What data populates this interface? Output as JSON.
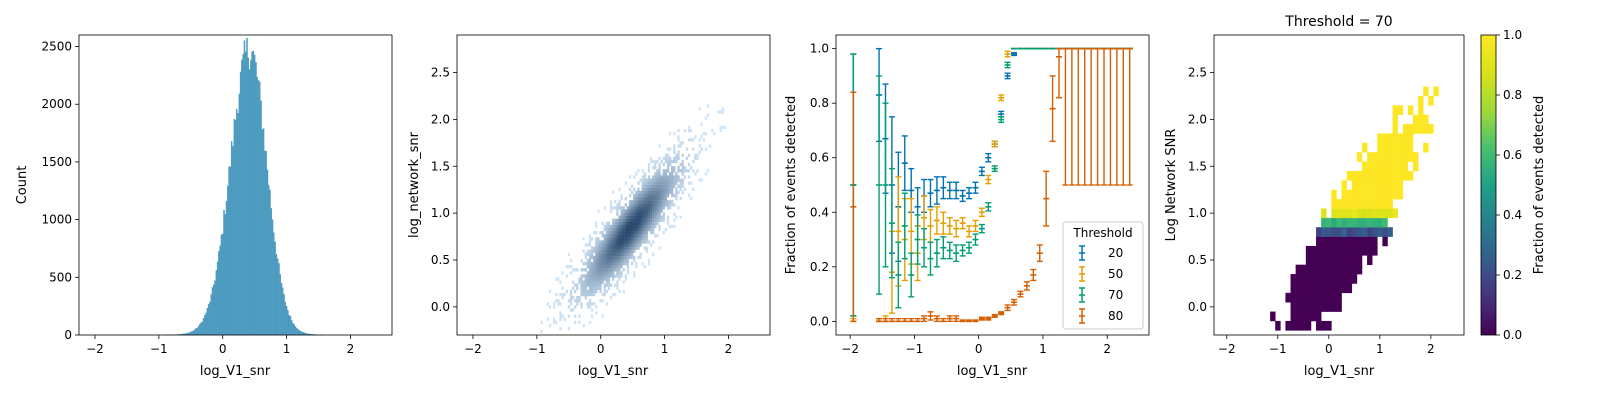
{
  "chart_data": [
    {
      "type": "bar",
      "subtype": "histogram",
      "title": "",
      "xlabel": "log_V1_snr",
      "ylabel": "Count",
      "xlim": [
        -2.25,
        2.65
      ],
      "ylim": [
        0,
        2600
      ],
      "xticks": [
        -2,
        -1,
        0,
        1,
        2
      ],
      "yticks": [
        0,
        500,
        1000,
        1500,
        2000,
        2500
      ],
      "bar_color": "#4a9ec4",
      "distribution": {
        "center": 0.42,
        "sd_left": 0.3,
        "sd_right": 0.27,
        "peak_count": 2450,
        "x_min": -2.05,
        "x_max": 2.45,
        "bin_width": 0.02
      }
    },
    {
      "type": "heatmap",
      "subtype": "2d-histogram",
      "title": "",
      "xlabel": "log_V1_snr",
      "ylabel": "log_network_snr",
      "xlim": [
        -2.25,
        2.65
      ],
      "ylim": [
        -0.3,
        2.9
      ],
      "xticks": [
        -2,
        -1,
        0,
        1,
        2
      ],
      "yticks": [
        0.0,
        0.5,
        1.0,
        1.5,
        2.0,
        2.5
      ],
      "color_low": "#d2e6f8",
      "color_high": "#2a4a6e",
      "density": {
        "center_x": 0.45,
        "center_y": 0.82,
        "slope": 0.78,
        "sd_x": 0.38,
        "sd_perp": 0.16
      }
    },
    {
      "type": "scatter",
      "subtype": "errorbar",
      "title": "",
      "xlabel": "log_V1_snr",
      "ylabel": "Fraction of events detected",
      "xlim": [
        -2.22,
        2.65
      ],
      "ylim": [
        -0.05,
        1.05
      ],
      "xticks": [
        -2,
        -1,
        0,
        1,
        2
      ],
      "yticks": [
        0.0,
        0.2,
        0.4,
        0.6,
        0.8,
        1.0
      ],
      "legend_title": "Threshold",
      "legend_position": "lower-right",
      "x": [
        -1.95,
        -1.55,
        -1.45,
        -1.35,
        -1.25,
        -1.15,
        -1.05,
        -0.95,
        -0.85,
        -0.75,
        -0.65,
        -0.55,
        -0.45,
        -0.35,
        -0.25,
        -0.15,
        -0.05,
        0.05,
        0.15,
        0.25,
        0.35,
        0.45,
        0.55,
        0.65,
        0.75,
        0.85,
        0.95,
        1.05,
        1.15,
        1.25,
        1.35,
        1.45,
        1.55,
        1.65,
        1.75,
        1.85,
        1.95,
        2.05,
        2.15,
        2.25,
        2.35
      ],
      "series": [
        {
          "name": "20",
          "color": "#0072b2",
          "y": [
            0.5,
            0.83,
            0.67,
            0.5,
            0.42,
            0.58,
            0.48,
            0.42,
            0.46,
            0.47,
            0.48,
            0.49,
            0.48,
            0.48,
            0.46,
            0.47,
            0.49,
            0.55,
            0.6,
            0.65,
            0.76,
            0.9,
            0.98,
            1.0,
            1.0,
            1.0,
            1.0,
            1.0,
            1.0,
            1.0,
            1.0,
            1.0,
            1.0,
            1.0,
            1.0,
            1.0,
            1.0,
            1.0,
            1.0,
            1.0,
            1.0
          ],
          "err": [
            0.48,
            0.17,
            0.2,
            0.25,
            0.2,
            0.1,
            0.08,
            0.07,
            0.06,
            0.05,
            0.05,
            0.04,
            0.03,
            0.03,
            0.02,
            0.02,
            0.02,
            0.015,
            0.015,
            0.01,
            0.01,
            0.01,
            0.005,
            0,
            0,
            0,
            0,
            0,
            0,
            0,
            0,
            0,
            0,
            0,
            0,
            0,
            0,
            0,
            0,
            0,
            0
          ]
        },
        {
          "name": "50",
          "color": "#e69f00",
          "y": [
            0.0,
            0.0,
            0.0,
            0.18,
            0.33,
            0.3,
            0.33,
            0.25,
            0.38,
            0.35,
            0.37,
            0.36,
            0.35,
            0.34,
            0.36,
            0.33,
            0.35,
            0.4,
            0.52,
            0.65,
            0.82,
            0.98,
            1.0,
            1.0,
            1.0,
            1.0,
            1.0,
            1.0,
            1.0,
            1.0,
            1.0,
            1.0,
            1.0,
            1.0,
            1.0,
            1.0,
            1.0,
            1.0,
            1.0,
            1.0,
            1.0
          ],
          "err": [
            0.01,
            0.01,
            0.02,
            0.15,
            0.2,
            0.15,
            0.12,
            0.1,
            0.08,
            0.06,
            0.05,
            0.04,
            0.03,
            0.03,
            0.02,
            0.02,
            0.02,
            0.015,
            0.015,
            0.01,
            0.01,
            0.01,
            0,
            0,
            0,
            0,
            0,
            0,
            0,
            0,
            0,
            0,
            0,
            0,
            0,
            0,
            0,
            0,
            0,
            0,
            0
          ]
        },
        {
          "name": "70",
          "color": "#009e73",
          "y": [
            0.5,
            0.5,
            0.5,
            0.36,
            0.17,
            0.35,
            0.17,
            0.3,
            0.27,
            0.23,
            0.25,
            0.27,
            0.26,
            0.25,
            0.26,
            0.27,
            0.3,
            0.34,
            0.42,
            0.56,
            0.74,
            0.94,
            1.0,
            1.0,
            1.0,
            1.0,
            1.0,
            1.0,
            1.0,
            1.0,
            1.0,
            1.0,
            1.0,
            1.0,
            1.0,
            1.0,
            1.0,
            1.0,
            1.0,
            1.0,
            1.0
          ],
          "err": [
            0.48,
            0.4,
            0.3,
            0.2,
            0.12,
            0.12,
            0.08,
            0.09,
            0.07,
            0.06,
            0.05,
            0.04,
            0.03,
            0.03,
            0.02,
            0.02,
            0.02,
            0.015,
            0.015,
            0.01,
            0.01,
            0.01,
            0,
            0,
            0,
            0,
            0,
            0,
            0,
            0,
            0,
            0,
            0,
            0,
            0,
            0,
            0,
            0,
            0,
            0,
            0
          ]
        },
        {
          "name": "80",
          "color": "#d55e00",
          "y": [
            0.42,
            0.0,
            0.0,
            0.0,
            0.0,
            0.0,
            0.0,
            0.0,
            0.01,
            0.02,
            0.01,
            0.0,
            0.01,
            0.01,
            0.0,
            0.0,
            0.0,
            0.01,
            0.01,
            0.02,
            0.03,
            0.05,
            0.07,
            0.1,
            0.13,
            0.17,
            0.25,
            0.45,
            0.78,
            0.97,
            1.0,
            1.0,
            1.0,
            1.0,
            1.0,
            1.0,
            1.0,
            1.0,
            1.0,
            1.0,
            1.0
          ],
          "err": [
            0.42,
            0.01,
            0.01,
            0.01,
            0.01,
            0.01,
            0.01,
            0.01,
            0.01,
            0.015,
            0.01,
            0.01,
            0.01,
            0.01,
            0.005,
            0.005,
            0.005,
            0.005,
            0.005,
            0.005,
            0.005,
            0.01,
            0.01,
            0.01,
            0.015,
            0.02,
            0.03,
            0.1,
            0.12,
            0.15,
            0.5,
            0.5,
            0.5,
            0.5,
            0.5,
            0.5,
            0.5,
            0.5,
            0.5,
            0.5,
            0.5
          ]
        }
      ]
    },
    {
      "type": "heatmap",
      "title": "Threshold = 70",
      "xlabel": "log_V1_snr",
      "ylabel": "Log Network SNR",
      "xlim": [
        -2.25,
        2.65
      ],
      "ylim": [
        -0.3,
        2.9
      ],
      "xticks": [
        -2,
        -1,
        0,
        1,
        2
      ],
      "yticks": [
        0.0,
        0.5,
        1.0,
        1.5,
        2.0,
        2.5
      ],
      "colormap": "viridis",
      "colorbar_label": "Fraction of events detected",
      "colorbar_ticks": [
        0.0,
        0.2,
        0.4,
        0.6,
        0.8,
        1.0
      ],
      "bin_size": 0.1,
      "transition_band": [
        0.75,
        1.0
      ]
    }
  ]
}
